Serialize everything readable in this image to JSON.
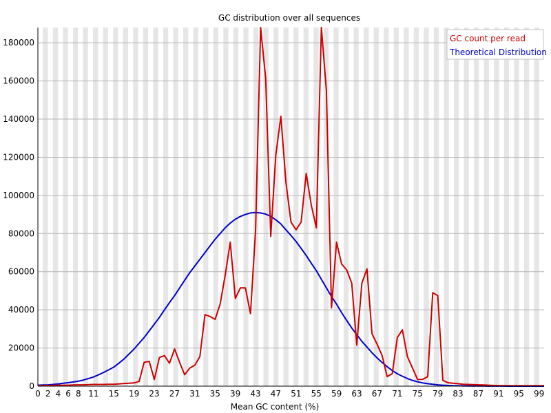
{
  "chart_data": {
    "type": "line",
    "title": "GC distribution over all sequences",
    "xlabel": "Mean GC content (%)",
    "ylabel": "",
    "xlim": [
      0,
      100
    ],
    "ylim": [
      0,
      188000
    ],
    "y_ticks": [
      0,
      20000,
      40000,
      60000,
      80000,
      100000,
      120000,
      140000,
      160000,
      180000
    ],
    "x_ticks": [
      0,
      2,
      4,
      6,
      8,
      11,
      15,
      19,
      23,
      27,
      31,
      35,
      39,
      43,
      47,
      51,
      55,
      59,
      63,
      67,
      71,
      75,
      79,
      83,
      87,
      91,
      95,
      99
    ],
    "legend": {
      "placement": "top-right",
      "entries": [
        "GC count per read",
        "Theoretical Distribution"
      ]
    },
    "colors": {
      "gc_count": "#cc0000",
      "theoretical": "#0000cc",
      "band": "#e6e6e6"
    },
    "series": [
      {
        "name": "GC count per read",
        "x": [
          0,
          1,
          2,
          3,
          4,
          5,
          6,
          7,
          8,
          9,
          10,
          11,
          12,
          13,
          14,
          15,
          16,
          17,
          18,
          19,
          20,
          21,
          22,
          23,
          24,
          25,
          26,
          27,
          28,
          29,
          30,
          31,
          32,
          33,
          34,
          35,
          36,
          37,
          38,
          39,
          40,
          41,
          42,
          43,
          44,
          45,
          46,
          47,
          48,
          49,
          50,
          51,
          52,
          53,
          54,
          55,
          56,
          57,
          58,
          59,
          60,
          61,
          62,
          63,
          64,
          65,
          66,
          67,
          68,
          69,
          70,
          71,
          72,
          73,
          74,
          75,
          76,
          77,
          78,
          79,
          80,
          81,
          82,
          83,
          84,
          85,
          86,
          87,
          88,
          89,
          90,
          91,
          92,
          93,
          94,
          95,
          96,
          97,
          98,
          99,
          100
        ],
        "values": [
          300,
          300,
          400,
          400,
          500,
          500,
          500,
          600,
          700,
          700,
          800,
          900,
          900,
          900,
          1000,
          1000,
          1200,
          1400,
          1500,
          1700,
          2500,
          12500,
          13000,
          3500,
          15000,
          16000,
          12000,
          19500,
          12500,
          6000,
          9500,
          11000,
          15500,
          37500,
          36500,
          35000,
          43000,
          58000,
          75500,
          46000,
          51500,
          51500,
          38000,
          82000,
          188000,
          161000,
          78500,
          121000,
          141500,
          107000,
          86000,
          82000,
          86000,
          111500,
          95000,
          83000,
          188000,
          155000,
          41000,
          75500,
          64000,
          61000,
          54000,
          21500,
          54000,
          61500,
          27500,
          22000,
          16000,
          5000,
          6500,
          25500,
          29500,
          15500,
          9500,
          3500,
          3500,
          5000,
          49000,
          47500,
          3000,
          1800,
          1500,
          1300,
          1000,
          900,
          800,
          700,
          600,
          500,
          400,
          300,
          300,
          200,
          200,
          200,
          200,
          200,
          200,
          200,
          200
        ]
      },
      {
        "name": "Theoretical Distribution",
        "x": [
          0,
          1,
          2,
          3,
          4,
          5,
          6,
          7,
          8,
          9,
          10,
          11,
          12,
          13,
          14,
          15,
          16,
          17,
          18,
          19,
          20,
          21,
          22,
          23,
          24,
          25,
          26,
          27,
          28,
          29,
          30,
          31,
          32,
          33,
          34,
          35,
          36,
          37,
          38,
          39,
          40,
          41,
          42,
          43,
          44,
          45,
          46,
          47,
          48,
          49,
          50,
          51,
          52,
          53,
          54,
          55,
          56,
          57,
          58,
          59,
          60,
          61,
          62,
          63,
          64,
          65,
          66,
          67,
          68,
          69,
          70,
          71,
          72,
          73,
          74,
          75,
          76,
          77,
          78,
          79,
          80,
          81,
          82,
          83,
          84,
          85,
          86,
          87,
          88,
          89,
          90,
          91,
          92,
          93,
          94,
          95,
          96,
          97,
          98,
          99,
          100
        ],
        "values": [
          500,
          600,
          700,
          900,
          1200,
          1500,
          1800,
          2200,
          2600,
          3200,
          4000,
          4800,
          6000,
          7200,
          8600,
          10000,
          12000,
          14200,
          16800,
          19500,
          22500,
          25500,
          29000,
          32500,
          36000,
          40000,
          43800,
          47500,
          51500,
          55500,
          59500,
          63000,
          66500,
          70000,
          73500,
          77000,
          80000,
          83000,
          85500,
          87500,
          89000,
          90000,
          90800,
          91000,
          90800,
          90200,
          89000,
          87200,
          85000,
          82000,
          79000,
          75800,
          72200,
          68500,
          64500,
          60500,
          56000,
          51500,
          47000,
          43000,
          38500,
          34500,
          30500,
          27000,
          23500,
          20500,
          17500,
          14800,
          12400,
          10200,
          8200,
          6500,
          5200,
          4000,
          3000,
          2300,
          1700,
          1300,
          1000,
          700,
          500,
          350,
          250,
          200,
          150,
          100,
          100,
          80,
          60,
          50,
          40,
          30,
          20,
          15,
          10,
          10,
          5,
          5,
          5,
          5,
          5
        ]
      }
    ]
  }
}
